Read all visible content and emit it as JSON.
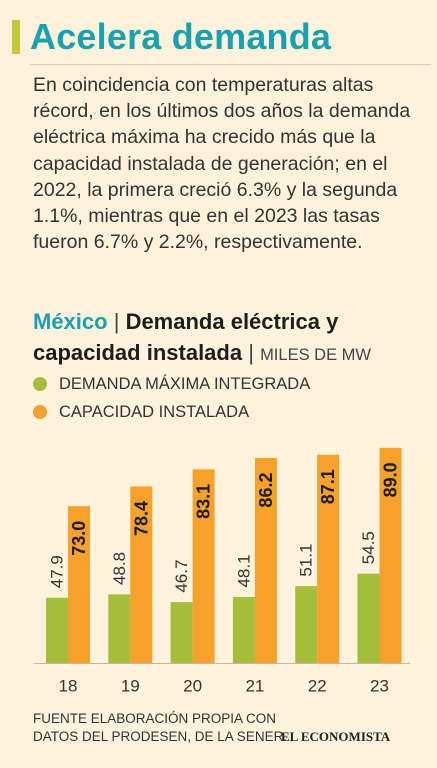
{
  "header": {
    "title": "Acelera demanda",
    "intro": "En coincidencia con temperaturas altas récord, en los últimos dos años la demanda eléctrica máxima ha crecido más que la capacidad instalada de generación; en el 2022, la primera creció 6.3% y la segunda 1.1%, mientras que en el 2023 las tasas fueron 6.7% y 2.2%, respectivamente."
  },
  "subtitle": {
    "country": "México",
    "separator": "|",
    "main": "Demanda eléctrica y capacidad instalada",
    "unit": "MILES DE MW"
  },
  "colors": {
    "accent": "#1aa0b0",
    "demand": "#a7bd3c",
    "capacity": "#f5a12b",
    "title_bar": "#c5c63a"
  },
  "chart_data": {
    "type": "bar",
    "categories": [
      "18",
      "19",
      "20",
      "21",
      "22",
      "23"
    ],
    "series": [
      {
        "name": "DEMANDA MÁXIMA INTEGRADA",
        "values": [
          47.9,
          48.8,
          46.7,
          48.1,
          51.1,
          54.5
        ],
        "labels": [
          "47.9",
          "48.8",
          "46.7",
          "48.1",
          "51.1",
          "54.5"
        ],
        "color": "#a7bd3c"
      },
      {
        "name": "CAPACIDAD INSTALADA",
        "values": [
          73.0,
          78.4,
          83.1,
          86.2,
          87.1,
          89.0
        ],
        "labels": [
          "73.0",
          "78.4",
          "83.1",
          "86.2",
          "87.1",
          "89.0"
        ],
        "color": "#f5a12b"
      }
    ],
    "ylim": [
      30,
      90
    ],
    "legend": "top-left",
    "grid": false
  },
  "footer": {
    "source": "FUENTE ELABORACIÓN PROPIA CON DATOS DEL PRODESEN, DE LA SENER.",
    "logo": "EL ECONOMISTA"
  }
}
